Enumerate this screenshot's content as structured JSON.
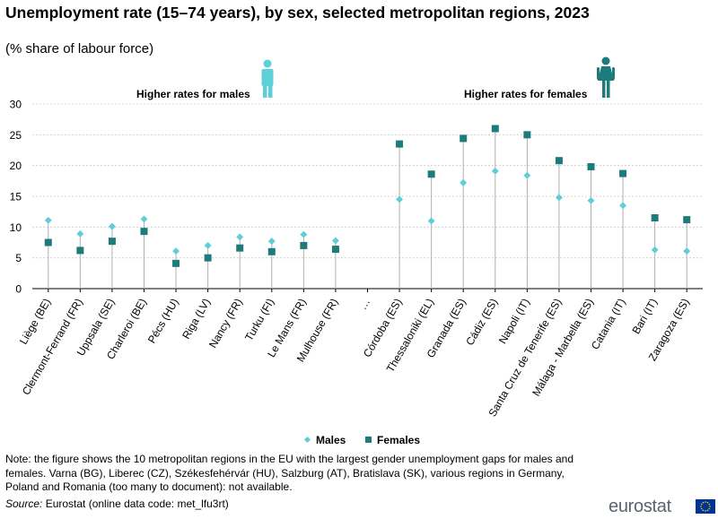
{
  "header": {
    "title": "Unemployment rate (15–74 years), by sex, selected metropolitan regions, 2023",
    "subtitle": "(% share of labour force)"
  },
  "annotations": {
    "males_side": "Higher rates for males",
    "females_side": "Higher rates for females",
    "male_icon": "male-figure-icon",
    "female_icon": "female-figure-icon"
  },
  "footer": {
    "note": "Note: the figure shows the 10 metropolitan regions in the EU with the largest gender unemployment  gaps for males and females. Varna (BG), Liberec (CZ), Székesfehérvár (HU), Salzburg (AT), Bratislava (SK), various regions in Germany,  Poland and Romania (too many to document): not available.",
    "source_label": "Source:",
    "source_text": " Eurostat (online data code: met_lfu3rt)",
    "logo_text": "eurostat"
  },
  "colors": {
    "males": "#5ccfd8",
    "females": "#1e7b7b",
    "stem": "#b0b0b0",
    "grid": "#c8c8c8",
    "icon_male": "#5ccfd8",
    "icon_female": "#1e7b7b"
  },
  "chart_data": {
    "type": "scatter",
    "title": "Unemployment rate (15–74 years), by sex, selected metropolitan regions, 2023",
    "ylabel": "% share of labour force",
    "ylim": [
      0,
      30
    ],
    "yticks": [
      0,
      5,
      10,
      15,
      20,
      25,
      30
    ],
    "grid": true,
    "legend_position": "bottom-center",
    "categories": [
      "Liège (BE)",
      "Clermont-Ferrand (FR)",
      "Uppsala (SE)",
      "Charleroi (BE)",
      "Pécs (HU)",
      "Riga (LV)",
      "Nancy (FR)",
      "Turku (FI)",
      "Le Mans (FR)",
      "Mulhouse (FR)",
      "…",
      "Córdoba (ES)",
      "Thessaloniki (EL)",
      "Granada (ES)",
      "Cádiz (ES)",
      "Napoli (IT)",
      "Santa Cruz de Tenerife (ES)",
      "Málaga - Marbella (ES)",
      "Catania (IT)",
      "Bari (IT)",
      "Zaragoza (ES)"
    ],
    "series": [
      {
        "name": "Males",
        "marker": "diamond",
        "values": [
          11.1,
          8.9,
          10.1,
          11.3,
          6.1,
          7.0,
          8.4,
          7.7,
          8.8,
          7.8,
          null,
          14.5,
          11.0,
          17.2,
          19.1,
          18.4,
          14.8,
          14.3,
          13.5,
          6.3,
          6.1
        ]
      },
      {
        "name": "Females",
        "marker": "square",
        "values": [
          7.5,
          6.2,
          7.7,
          9.3,
          4.1,
          5.0,
          6.6,
          6.0,
          7.0,
          6.4,
          null,
          23.5,
          18.6,
          24.4,
          26.0,
          25.0,
          20.8,
          19.8,
          18.7,
          11.5,
          11.2
        ]
      }
    ]
  }
}
